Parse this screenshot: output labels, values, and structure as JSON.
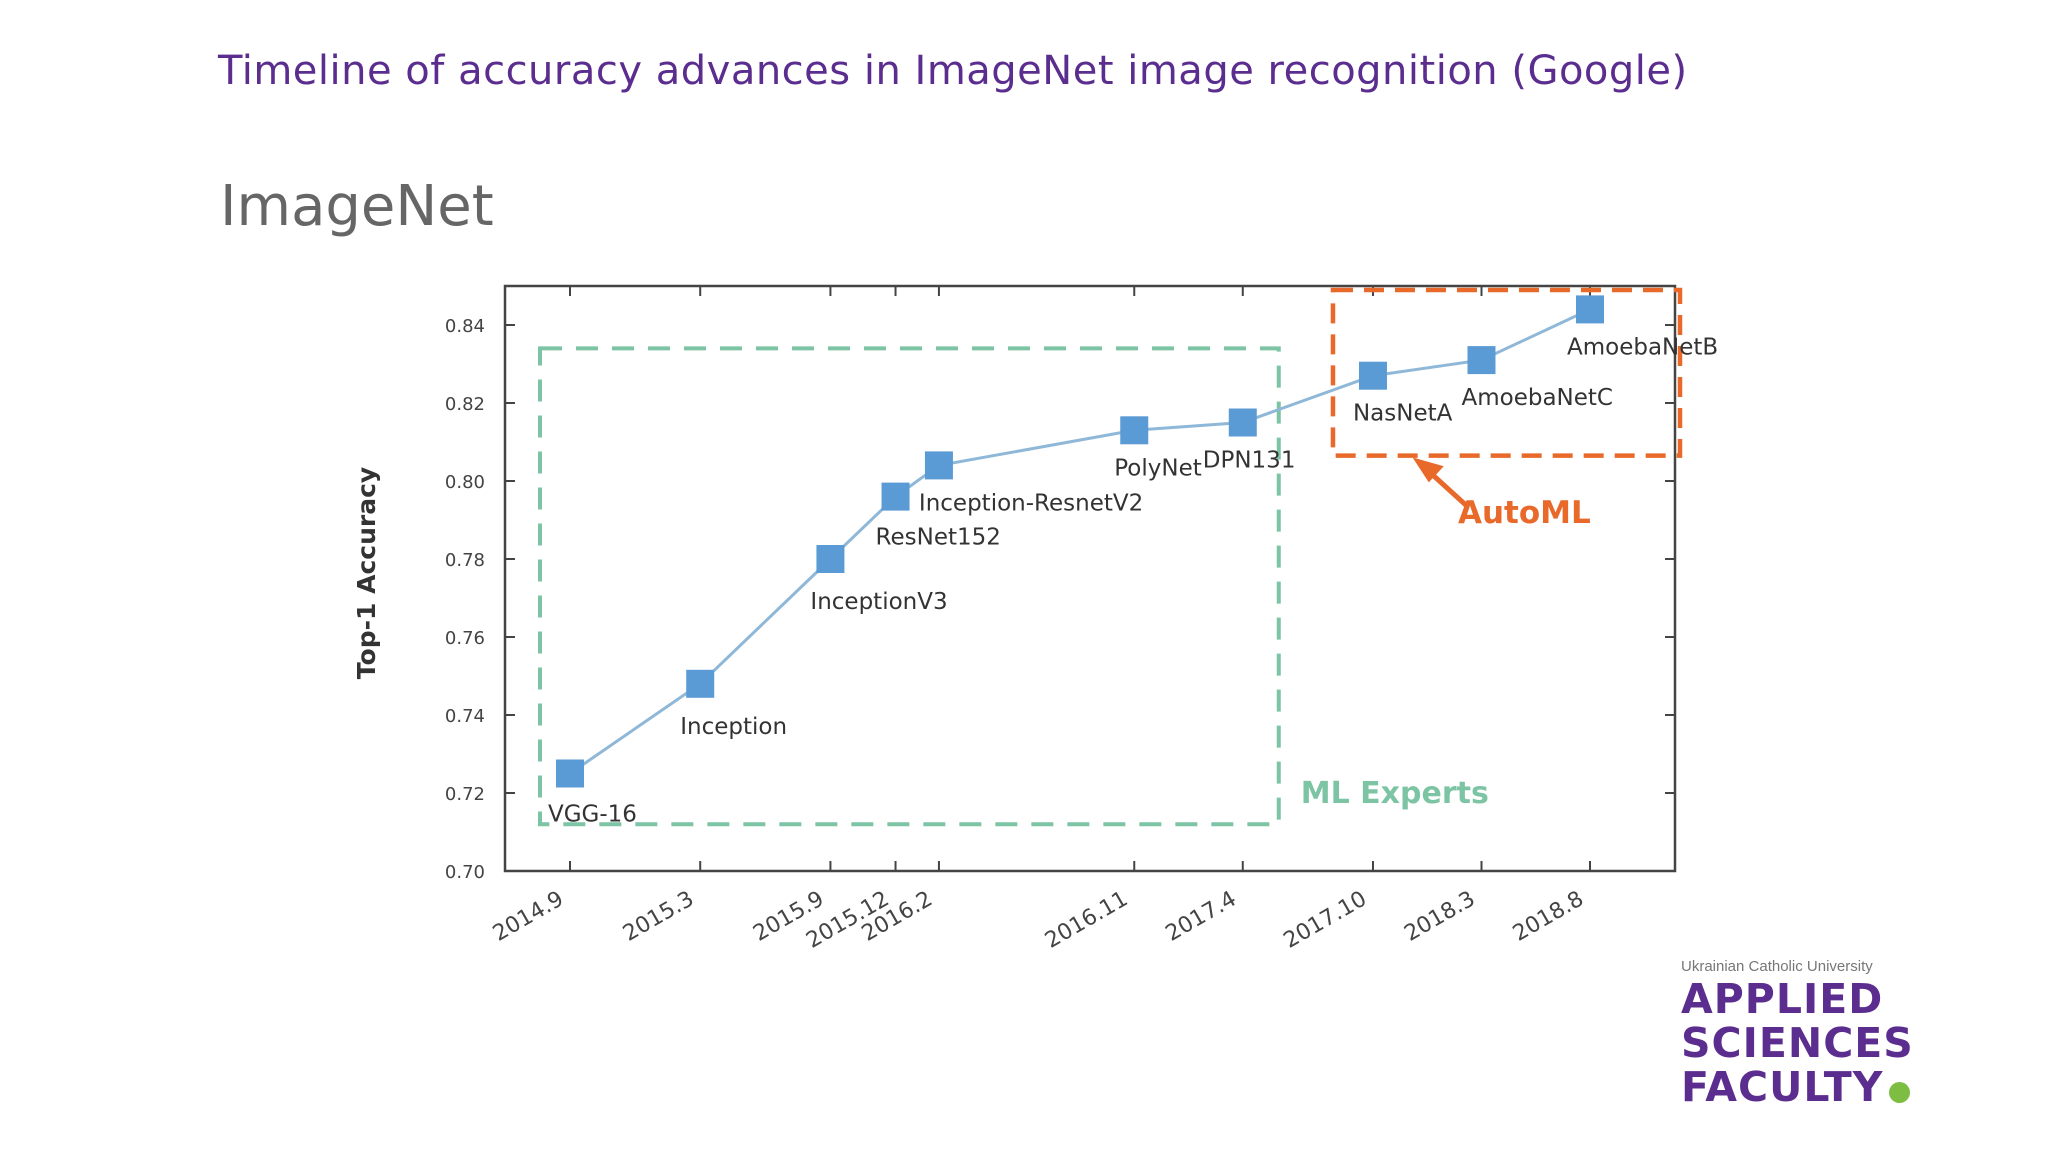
{
  "slide": {
    "title": "Timeline of accuracy advances in ImageNet image recognition (Google)"
  },
  "chart_data": {
    "type": "line",
    "title": "ImageNet",
    "ylabel": "Top-1 Accuracy",
    "xlabel": "",
    "ylim": [
      0.7,
      0.85
    ],
    "yticks": [
      "0.70",
      "0.72",
      "0.74",
      "0.76",
      "0.78",
      "0.80",
      "0.82",
      "0.84"
    ],
    "grid": false,
    "points": [
      {
        "date": "2014.9",
        "value": 0.725,
        "model": "VGG-16"
      },
      {
        "date": "2015.3",
        "value": 0.748,
        "model": "Inception"
      },
      {
        "date": "2015.9",
        "value": 0.78,
        "model": "InceptionV3"
      },
      {
        "date": "2015.12",
        "value": 0.796,
        "model": "ResNet152"
      },
      {
        "date": "2016.2",
        "value": 0.804,
        "model": "Inception-ResnetV2"
      },
      {
        "date": "2016.11",
        "value": 0.813,
        "model": "PolyNet"
      },
      {
        "date": "2017.4",
        "value": 0.815,
        "model": "DPN131"
      },
      {
        "date": "2017.10",
        "value": 0.827,
        "model": "NasNetA"
      },
      {
        "date": "2018.3",
        "value": 0.831,
        "model": "AmoebaNetC"
      },
      {
        "date": "2018.8",
        "value": 0.844,
        "model": "AmoebaNetB"
      }
    ],
    "regions": [
      {
        "label": "ML Experts",
        "from": "2014.9",
        "to": "2017.4",
        "color": "#7cc4a4"
      },
      {
        "label": "AutoML",
        "from": "2017.10",
        "to": "2018.8",
        "color": "#e8692a"
      }
    ],
    "colors": {
      "marker": "#5b9bd5",
      "line": "#8fb8d8",
      "axis": "#555555"
    }
  },
  "logo": {
    "university": "Ukrainian Catholic University",
    "line1": "APPLIED",
    "line2": "SCIENCES",
    "line3": "FACULTY",
    "dot_color": "#7cbd42"
  }
}
